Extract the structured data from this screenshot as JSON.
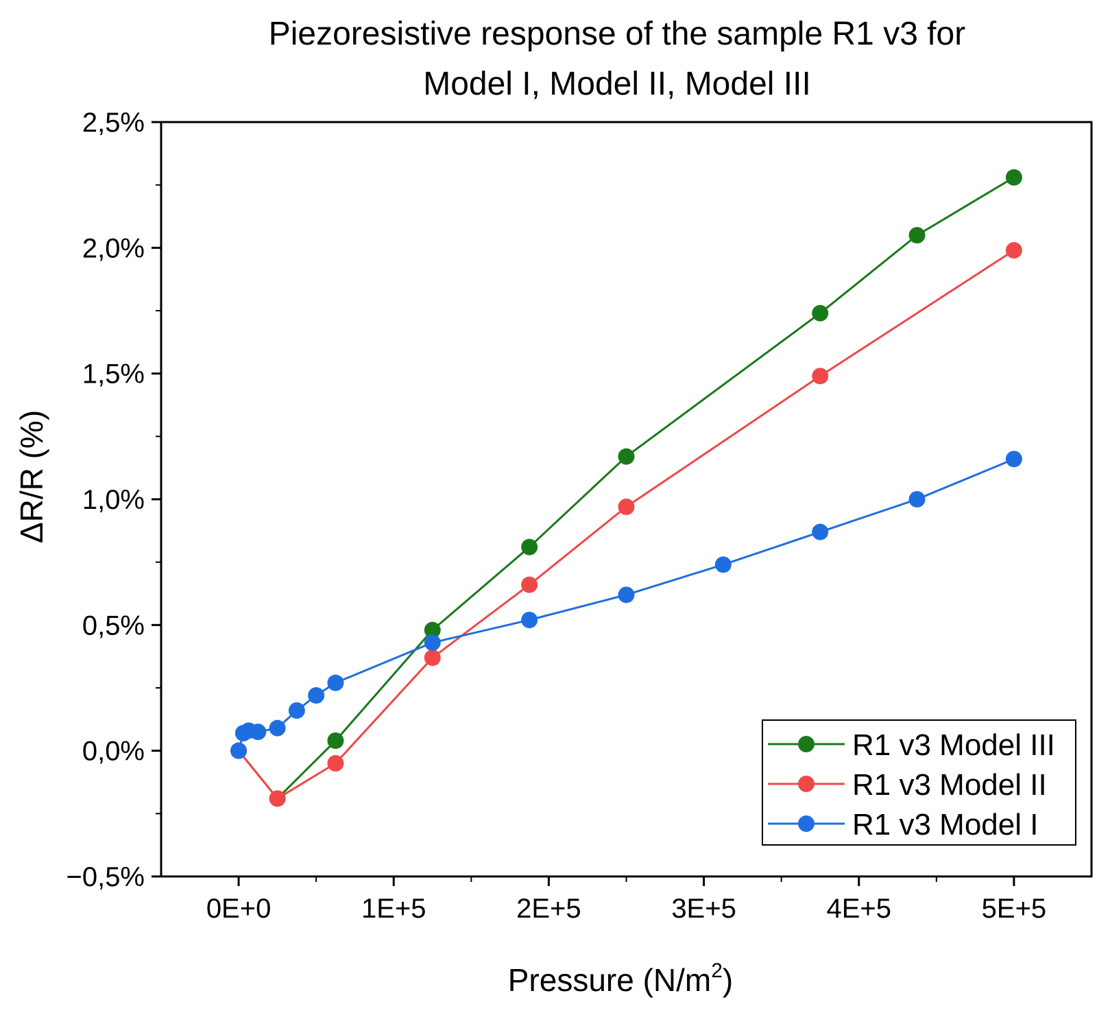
{
  "chart_data": {
    "type": "line",
    "title_line1": "Piezoresistive response of the sample R1 v3 for",
    "title_line2": "Model I, Model II, Model III",
    "xlabel_main": "Pressure (N/m",
    "xlabel_sup": "2",
    "xlabel_close": ")",
    "ylabel": "ΔR/R (%)",
    "xlim": [
      -50000,
      550000
    ],
    "ylim": [
      -0.5,
      2.5
    ],
    "x_ticks": [
      {
        "value": 0,
        "label": "0E+0"
      },
      {
        "value": 100000,
        "label": "1E+5"
      },
      {
        "value": 200000,
        "label": "2E+5"
      },
      {
        "value": 300000,
        "label": "3E+5"
      },
      {
        "value": 400000,
        "label": "4E+5"
      },
      {
        "value": 500000,
        "label": "5E+5"
      }
    ],
    "x_minor_ticks": [
      50000,
      150000,
      250000,
      350000,
      450000
    ],
    "y_ticks": [
      {
        "value": -0.5,
        "label": "−0,5%"
      },
      {
        "value": 0.0,
        "label": "0,0%"
      },
      {
        "value": 0.5,
        "label": "0,5%"
      },
      {
        "value": 1.0,
        "label": "1,0%"
      },
      {
        "value": 1.5,
        "label": "1,5%"
      },
      {
        "value": 2.0,
        "label": "2,0%"
      },
      {
        "value": 2.5,
        "label": "2,5%"
      }
    ],
    "y_minor_ticks": [
      -0.25,
      0.25,
      0.75,
      1.25,
      1.75,
      2.25
    ],
    "grid": false,
    "legend_position": "bottom-right",
    "series": [
      {
        "name": "R1 v3 Model III",
        "color": "#1a7a1a",
        "x": [
          0,
          25000,
          62500,
          125000,
          187500,
          250000,
          375000,
          437500,
          500000
        ],
        "y": [
          0.0,
          -0.19,
          0.04,
          0.48,
          0.81,
          1.17,
          1.74,
          2.05,
          2.28
        ]
      },
      {
        "name": "R1 v3 Model II",
        "color": "#f04848",
        "x": [
          0,
          25000,
          62500,
          125000,
          187500,
          250000,
          375000,
          500000
        ],
        "y": [
          0.0,
          -0.19,
          -0.05,
          0.37,
          0.66,
          0.97,
          1.49,
          1.99
        ]
      },
      {
        "name": "R1 v3 Model I",
        "color": "#1f6ee0",
        "x": [
          0,
          3000,
          6500,
          12500,
          25000,
          37500,
          50000,
          62500,
          125000,
          187500,
          250000,
          312500,
          375000,
          437500,
          500000
        ],
        "y": [
          0.0,
          0.07,
          0.08,
          0.075,
          0.09,
          0.16,
          0.22,
          0.27,
          0.43,
          0.52,
          0.62,
          0.74,
          0.87,
          1.0,
          1.16
        ]
      }
    ]
  }
}
